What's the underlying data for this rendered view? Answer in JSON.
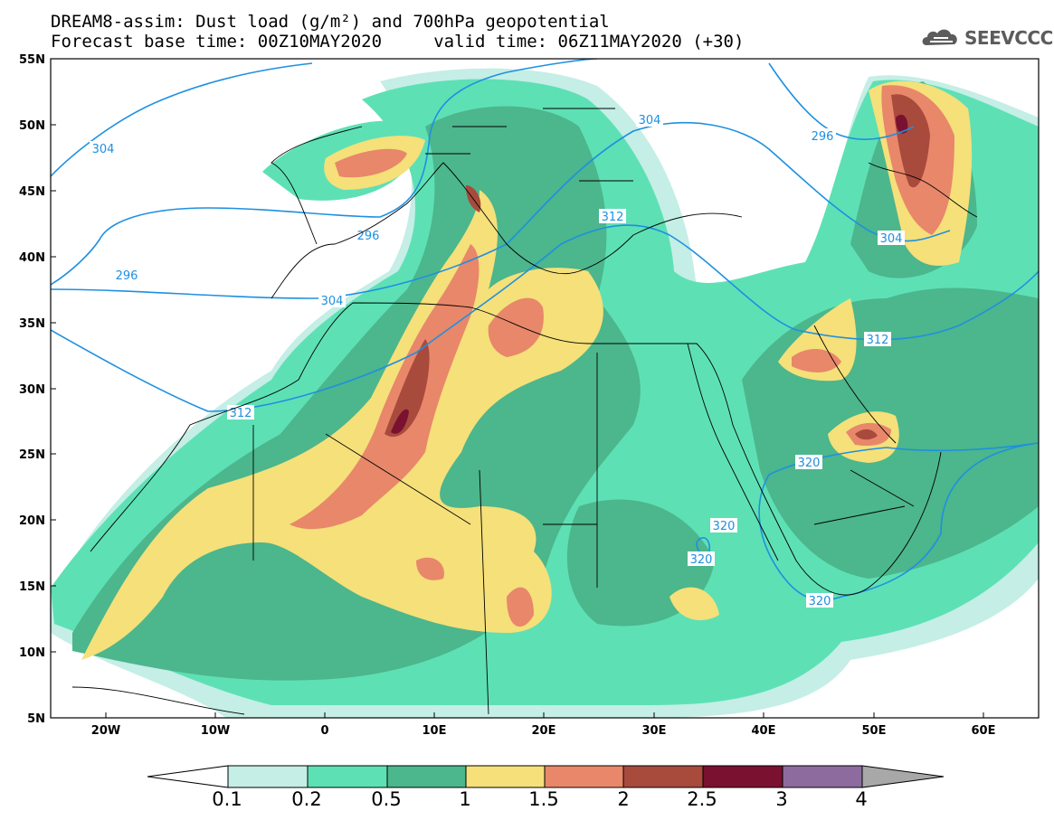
{
  "header": {
    "title_line1": "DREAM8-assim: Dust load (g/m²) and 700hPa geopotential",
    "title_line2": "Forecast base time: 00Z10MAY2020     valid time: 06Z11MAY2020 (+30)",
    "logo_text": "SEEVCCC",
    "logo_icon": "cloud-icon"
  },
  "map": {
    "region": "North Africa, Europe and Middle East",
    "lon_range": [
      -25,
      65
    ],
    "lat_range": [
      5,
      55
    ],
    "lat_ticks": [
      "55N",
      "50N",
      "45N",
      "40N",
      "35N",
      "30N",
      "25N",
      "20N",
      "15N",
      "10N",
      "5N"
    ],
    "lon_ticks": [
      "20W",
      "10W",
      "0",
      "10E",
      "20E",
      "30E",
      "40E",
      "50E",
      "60E"
    ],
    "contour_color": "#1e90e0",
    "contour_labels": [
      "304",
      "296",
      "296",
      "304",
      "304",
      "296",
      "304",
      "312",
      "312",
      "312",
      "320",
      "320",
      "320",
      "320"
    ]
  },
  "colorbar": {
    "labels": [
      "0.1",
      "0.2",
      "0.5",
      "1",
      "1.5",
      "2",
      "2.5",
      "3",
      "4"
    ],
    "colors": [
      "#c4eee6",
      "#5ee0b5",
      "#4cb68c",
      "#f5e07a",
      "#e8876a",
      "#a84a3c",
      "#7a1130",
      "#8d6b9e",
      "#a8a8a8"
    ]
  }
}
